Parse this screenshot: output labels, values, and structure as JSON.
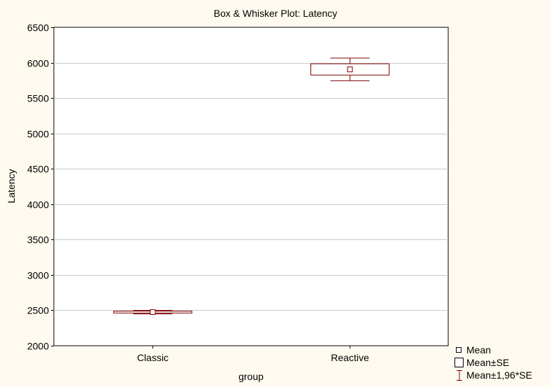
{
  "chart_data": {
    "type": "boxplot",
    "title": "Box & Whisker Plot:  Latency",
    "xlabel": "group",
    "ylabel": "Latency",
    "ylim": [
      2000,
      6500
    ],
    "yticks": [
      2000,
      2500,
      3000,
      3500,
      4000,
      4500,
      5000,
      5500,
      6000,
      6500
    ],
    "grid": true,
    "legend_position": "bottom-right",
    "categories": [
      "Classic",
      "Reactive"
    ],
    "groups": [
      {
        "category": "Classic",
        "mean": 2475,
        "se_low": 2462,
        "se_high": 2488,
        "ci_low": 2450,
        "ci_high": 2500
      },
      {
        "category": "Reactive",
        "mean": 5905,
        "se_low": 5825,
        "se_high": 5985,
        "ci_low": 5745,
        "ci_high": 6065
      }
    ],
    "legend": [
      {
        "symbol": "mean-marker",
        "label": "Mean"
      },
      {
        "symbol": "box",
        "label": "Mean±SE"
      },
      {
        "symbol": "whisker",
        "label": "Mean±1,96*SE"
      }
    ]
  },
  "colors": {
    "background": "#fffaef",
    "plot_area": "#ffffff",
    "series": "#800000",
    "grid": "#c8c8c8",
    "axis": "#000000"
  }
}
